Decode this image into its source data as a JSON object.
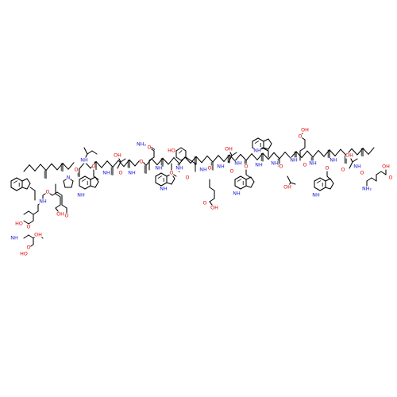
{
  "structure": {
    "bond_color": "#000000",
    "oxygen_color": "#e00000",
    "nitrogen_color": "#1a1ad6",
    "labels": {
      "oh": "OH",
      "o": "O",
      "nh": "NH",
      "n": "N",
      "h": "H",
      "ho": "HO",
      "nh2": "NH₂"
    }
  }
}
